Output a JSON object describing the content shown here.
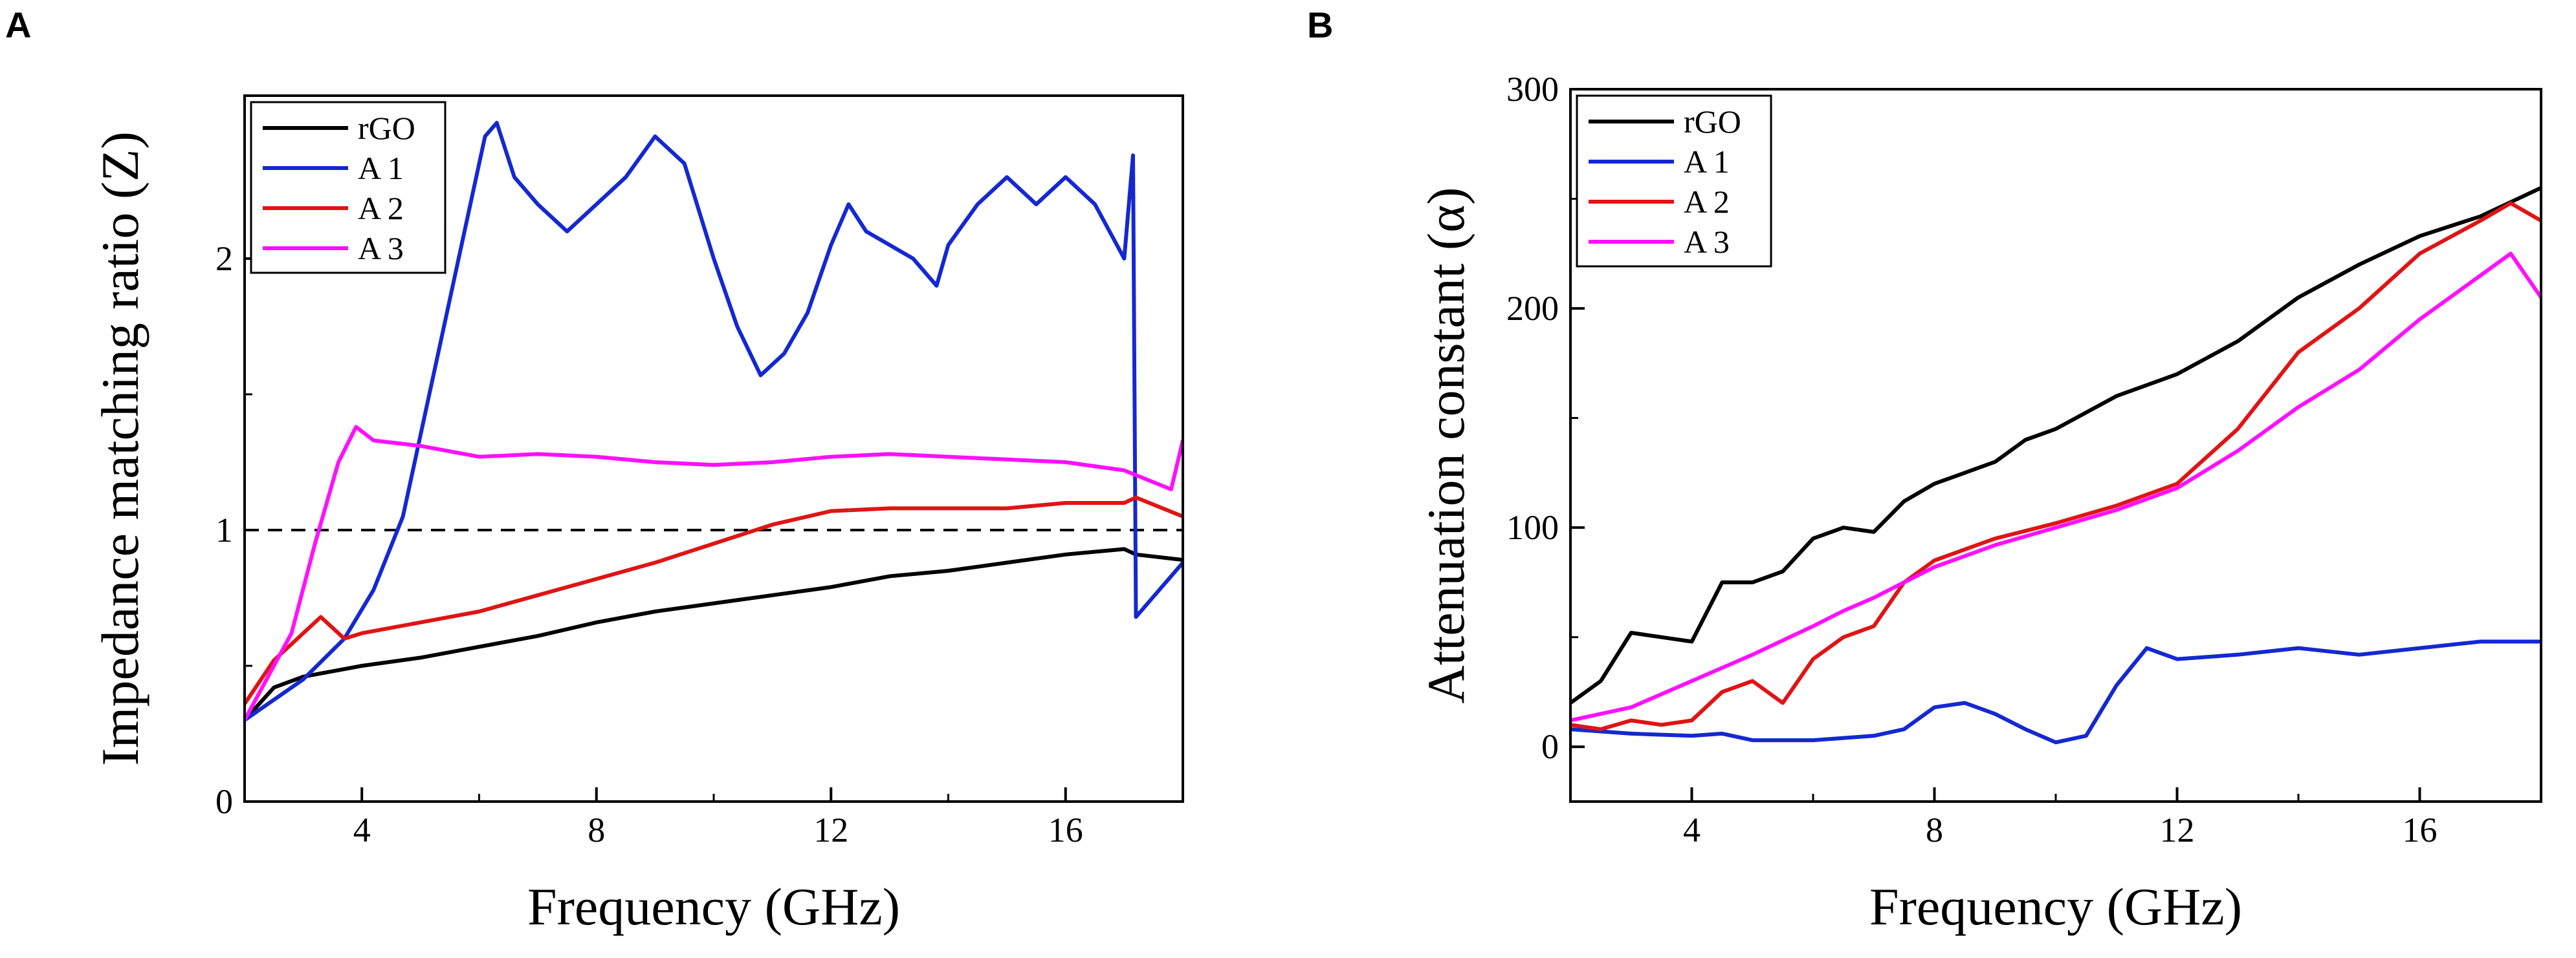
{
  "chart_data": [
    {
      "panel": "A",
      "type": "line",
      "title": "",
      "xlabel": "Frequency (GHz)",
      "ylabel": "Impedance matching ratio (Z)",
      "xlim": [
        2,
        18
      ],
      "ylim": [
        0,
        2.6
      ],
      "xticks": [
        4,
        8,
        12,
        16
      ],
      "xtick_labels": [
        "4",
        "8",
        "12",
        "16"
      ],
      "yticks": [
        0,
        1,
        2
      ],
      "ytick_labels": [
        "0",
        "1",
        "2"
      ],
      "reference_line": {
        "y": 1,
        "style": "dashed"
      },
      "legend_position": "top-left",
      "series": [
        {
          "name": "rGO",
          "color": "#000000",
          "x": [
            2,
            2.5,
            3,
            3.5,
            4,
            5,
            6,
            7,
            8,
            9,
            10,
            11,
            12,
            13,
            14,
            15,
            16,
            17,
            17.2,
            18
          ],
          "y": [
            0.3,
            0.42,
            0.46,
            0.48,
            0.5,
            0.53,
            0.57,
            0.61,
            0.66,
            0.7,
            0.73,
            0.76,
            0.79,
            0.83,
            0.85,
            0.88,
            0.91,
            0.93,
            0.91,
            0.89
          ]
        },
        {
          "name": "A 1",
          "color": "#1428d2",
          "x": [
            2,
            3,
            3.7,
            4.2,
            4.7,
            5.2,
            5.7,
            6.1,
            6.3,
            6.6,
            7,
            7.5,
            8,
            8.5,
            9,
            9.5,
            10,
            10.4,
            10.8,
            11.2,
            11.6,
            12,
            12.3,
            12.6,
            13,
            13.4,
            13.8,
            14,
            14.5,
            15,
            15.5,
            16,
            16.5,
            17,
            17.15,
            17.2,
            18
          ],
          "y": [
            0.3,
            0.45,
            0.6,
            0.78,
            1.05,
            1.55,
            2.05,
            2.45,
            2.5,
            2.3,
            2.2,
            2.1,
            2.2,
            2.3,
            2.45,
            2.35,
            2.0,
            1.75,
            1.57,
            1.65,
            1.8,
            2.05,
            2.2,
            2.1,
            2.05,
            2.0,
            1.9,
            2.05,
            2.2,
            2.3,
            2.2,
            2.3,
            2.2,
            2.0,
            2.38,
            0.68,
            0.88
          ]
        },
        {
          "name": "A 2",
          "color": "#e01414",
          "x": [
            2,
            2.5,
            3,
            3.3,
            3.7,
            4,
            5,
            6,
            7,
            8,
            9,
            10,
            11,
            12,
            13,
            14,
            15,
            16,
            17,
            17.2,
            18
          ],
          "y": [
            0.36,
            0.52,
            0.62,
            0.68,
            0.6,
            0.62,
            0.66,
            0.7,
            0.76,
            0.82,
            0.88,
            0.95,
            1.02,
            1.07,
            1.08,
            1.08,
            1.08,
            1.1,
            1.1,
            1.12,
            1.05
          ]
        },
        {
          "name": "A 3",
          "color": "#ff10ff",
          "x": [
            2,
            2.8,
            3.2,
            3.6,
            3.9,
            4.2,
            5,
            6,
            7,
            8,
            9,
            10,
            11,
            12,
            13,
            14,
            15,
            16,
            17,
            17.8,
            18
          ],
          "y": [
            0.3,
            0.62,
            0.95,
            1.25,
            1.38,
            1.33,
            1.31,
            1.27,
            1.28,
            1.27,
            1.25,
            1.24,
            1.25,
            1.27,
            1.28,
            1.27,
            1.26,
            1.25,
            1.22,
            1.15,
            1.33
          ]
        }
      ]
    },
    {
      "panel": "B",
      "type": "line",
      "title": "",
      "xlabel": "Frequency (GHz)",
      "ylabel": "Attenuation constant (α)",
      "xlim": [
        2,
        18
      ],
      "ylim": [
        -25,
        300
      ],
      "xticks": [
        4,
        8,
        12,
        16
      ],
      "xtick_labels": [
        "4",
        "8",
        "12",
        "16"
      ],
      "yticks": [
        0,
        100,
        200,
        300
      ],
      "ytick_labels": [
        "0",
        "100",
        "200",
        "300"
      ],
      "legend_position": "top-left",
      "series": [
        {
          "name": "rGO",
          "color": "#000000",
          "x": [
            2,
            2.5,
            3,
            3.5,
            4,
            4.5,
            5,
            5.5,
            6,
            6.5,
            7,
            7.5,
            8,
            8.5,
            9,
            9.5,
            10,
            11,
            12,
            13,
            14,
            15,
            16,
            17,
            18
          ],
          "y": [
            20,
            30,
            52,
            50,
            48,
            75,
            75,
            80,
            95,
            100,
            98,
            112,
            120,
            125,
            130,
            140,
            145,
            160,
            170,
            185,
            205,
            220,
            233,
            242,
            255
          ]
        },
        {
          "name": "A 1",
          "color": "#1428d2",
          "x": [
            2,
            3,
            4,
            4.5,
            5,
            6,
            7,
            7.5,
            8,
            8.5,
            9,
            9.5,
            10,
            10.5,
            11,
            11.5,
            12,
            13,
            14,
            15,
            16,
            17,
            18
          ],
          "y": [
            8,
            6,
            5,
            6,
            3,
            3,
            5,
            8,
            18,
            20,
            15,
            8,
            2,
            5,
            28,
            45,
            40,
            42,
            45,
            42,
            45,
            48,
            48
          ]
        },
        {
          "name": "A 2",
          "color": "#e01414",
          "x": [
            2,
            2.5,
            3,
            3.5,
            4,
            4.5,
            5,
            5.5,
            6,
            6.5,
            7,
            7.5,
            8,
            9,
            10,
            11,
            12,
            13,
            14,
            15,
            16,
            17,
            17.5,
            18
          ],
          "y": [
            10,
            8,
            12,
            10,
            12,
            25,
            30,
            20,
            40,
            50,
            55,
            75,
            85,
            95,
            102,
            110,
            120,
            145,
            180,
            200,
            225,
            240,
            248,
            240
          ]
        },
        {
          "name": "A 3",
          "color": "#ff10ff",
          "x": [
            2,
            3,
            4,
            5,
            6,
            6.5,
            7,
            8,
            9,
            10,
            11,
            12,
            13,
            14,
            15,
            16,
            17,
            17.5,
            18
          ],
          "y": [
            12,
            18,
            30,
            42,
            55,
            62,
            68,
            82,
            92,
            100,
            108,
            118,
            135,
            155,
            172,
            195,
            215,
            225,
            205
          ]
        }
      ]
    }
  ]
}
